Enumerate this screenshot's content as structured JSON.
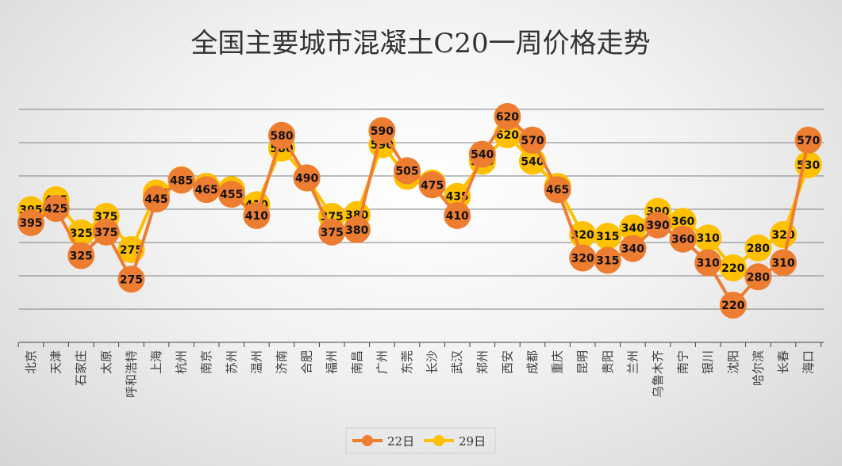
{
  "chart_data": {
    "type": "line",
    "title": "全国主要城市混凝土C20一周价格走势",
    "categories": [
      "北京",
      "天津",
      "石家庄",
      "太原",
      "呼和浩特",
      "上海",
      "杭州",
      "南京",
      "苏州",
      "温州",
      "济南",
      "合肥",
      "福州",
      "南昌",
      "广州",
      "东莞",
      "长沙",
      "武汉",
      "郑州",
      "西安",
      "成都",
      "重庆",
      "昆明",
      "贵阳",
      "兰州",
      "乌鲁木齐",
      "南宁",
      "银川",
      "沈阳",
      "哈尔滨",
      "长春",
      "海口"
    ],
    "series": [
      {
        "name": "22日",
        "color": "#ED7D31",
        "values": [
          395,
          425,
          325,
          375,
          275,
          445,
          485,
          465,
          455,
          410,
          580,
          490,
          375,
          380,
          590,
          505,
          475,
          410,
          540,
          620,
          570,
          465,
          320,
          315,
          340,
          390,
          360,
          310,
          220,
          280,
          310,
          570
        ]
      },
      {
        "name": "29日",
        "color": "#FFC000",
        "values": [
          395,
          425,
          325,
          375,
          275,
          445,
          485,
          465,
          455,
          410,
          580,
          490,
          375,
          380,
          590,
          495,
          475,
          435,
          540,
          620,
          540,
          465,
          320,
          315,
          340,
          390,
          360,
          310,
          220,
          280,
          320,
          530
        ]
      }
    ],
    "legend_position": "bottom",
    "grid": true,
    "colors": {
      "gridline": "#7F7F7F",
      "axis": "#404040"
    }
  }
}
